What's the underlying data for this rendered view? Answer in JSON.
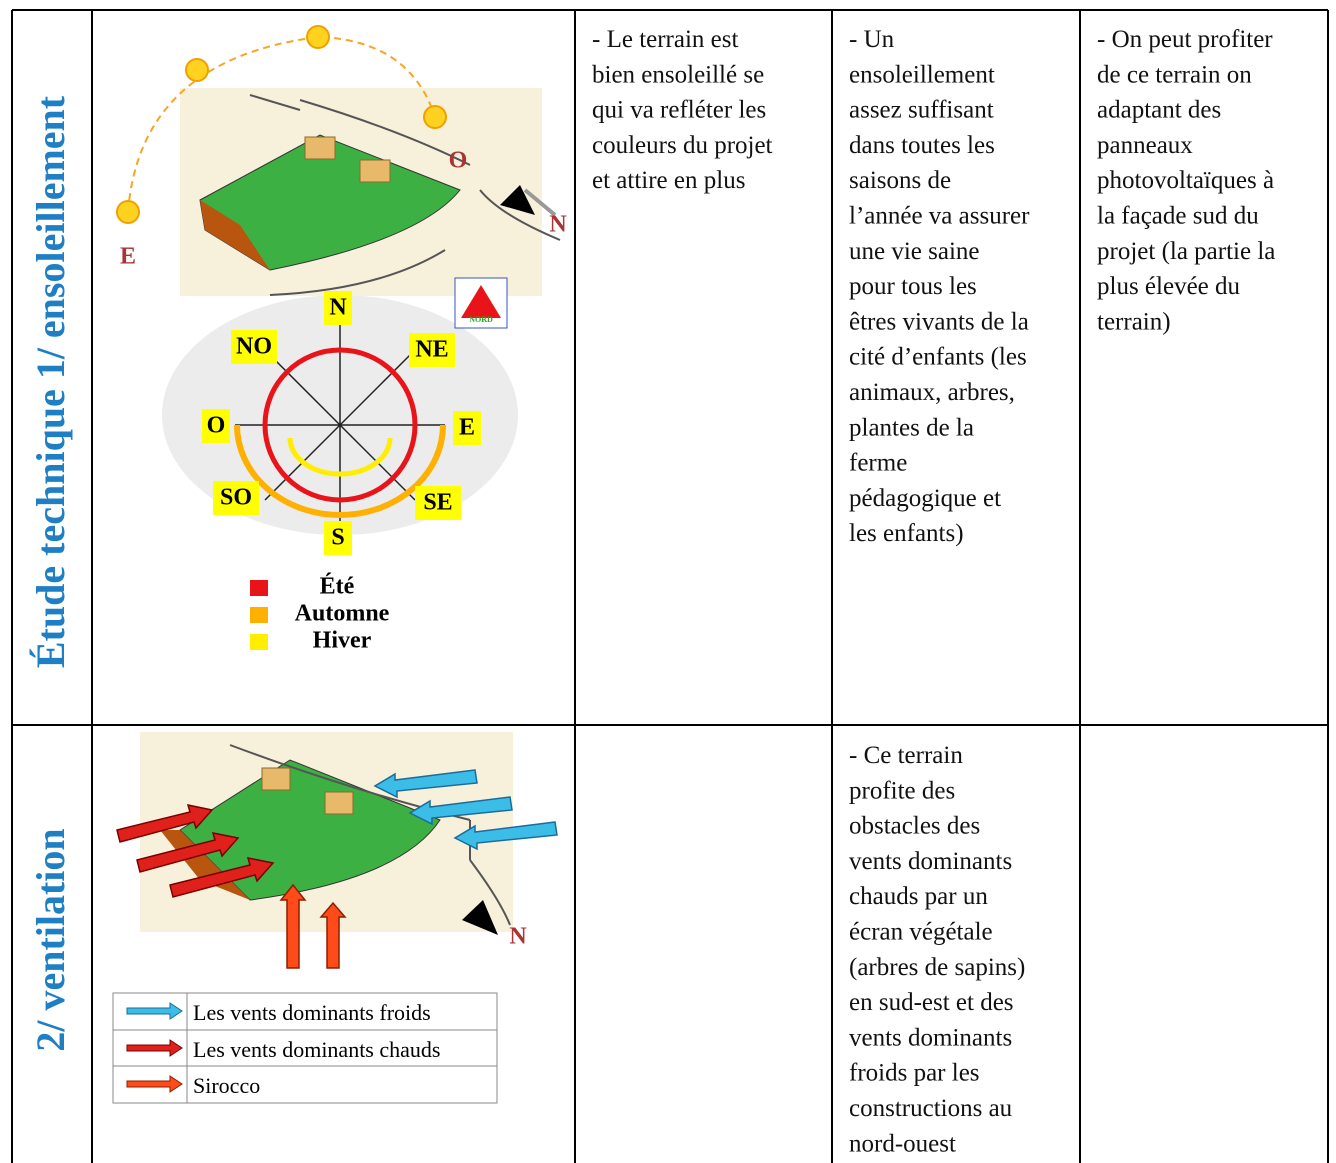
{
  "rows": [
    {
      "heading": "Étude technique  1/ ensoleillement",
      "figure": {
        "sun_labels": [
          "E",
          "O",
          "N"
        ],
        "compass": [
          "N",
          "NE",
          "E",
          "SE",
          "S",
          "SO",
          "O",
          "NO"
        ],
        "logo": "NORD",
        "legend": [
          "Été",
          "Automne",
          "Hiver"
        ]
      },
      "cells": [
        [
          "- Le terrain est",
          "bien ensoleillé  se",
          "qui va refléter  les",
          "couleurs du projet",
          "et attire  en plus"
        ],
        [
          "- Un",
          "ensoleillement",
          "assez suffisant",
          "dans toutes les",
          "saisons de",
          "l’année va assurer",
          "une vie saine",
          "pour tous les",
          "êtres vivants de la",
          "cité d’enfants (les",
          "animaux, arbres,",
          "plantes de la",
          "ferme",
          "pédagogique et",
          "les enfants)"
        ],
        [
          "- On peut profiter",
          "de ce terrain on",
          "adaptant des",
          "panneaux",
          "photovoltaïques à",
          "la façade sud du",
          "projet (la partie la",
          "plus élevée du",
          "terrain)"
        ]
      ]
    },
    {
      "heading": "2/ ventilation",
      "figure": {
        "north": "N",
        "legend": [
          "Les vents dominants froids",
          "Les vents dominants chauds",
          "Sirocco"
        ]
      },
      "cells": [
        [],
        [
          "- Ce terrain",
          "profite des",
          "obstacles des",
          "vents dominants",
          "chauds par un",
          "écran végétale",
          "(arbres de sapins)",
          "en sud-est et des",
          "vents dominants",
          "froids par les",
          "constructions au",
          "nord-ouest"
        ],
        []
      ]
    }
  ]
}
